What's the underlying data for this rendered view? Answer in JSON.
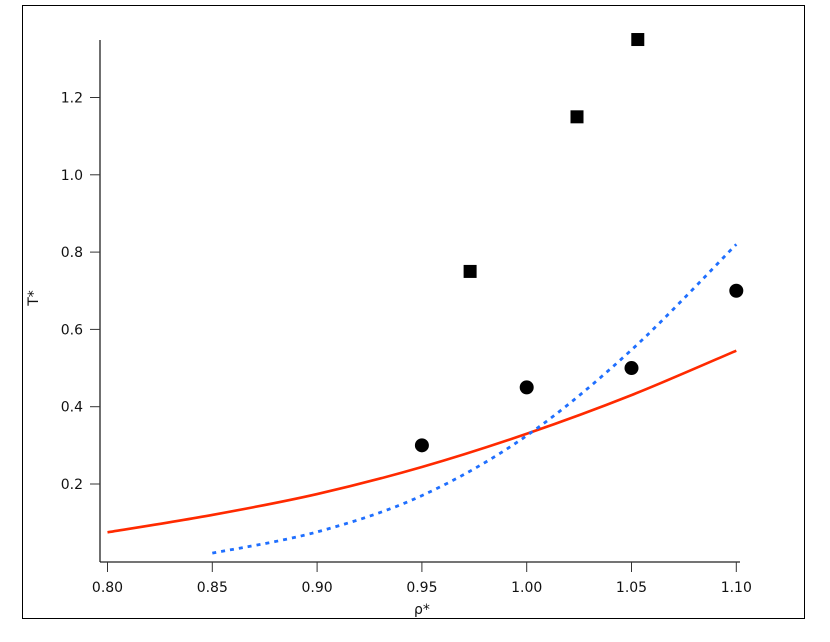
{
  "chart_data": {
    "type": "scatter",
    "title": "",
    "xlabel": "ρ*",
    "ylabel": "T*",
    "xlim": [
      0.797,
      1.1
    ],
    "ylim": [
      0.0,
      1.35
    ],
    "xticks": [
      0.8,
      0.85,
      0.9,
      0.95,
      1.0,
      1.05,
      1.1
    ],
    "xtick_labels": [
      "0.80",
      "0.85",
      "0.90",
      "0.95",
      "1.00",
      "1.05",
      "1.10"
    ],
    "yticks": [
      0.2,
      0.4,
      0.6,
      0.8,
      1.0,
      1.2
    ],
    "ytick_labels": [
      "0.2",
      "0.4",
      "0.6",
      "0.8",
      "1.0",
      "1.2"
    ],
    "grid": false,
    "series": [
      {
        "kind": "marker-square",
        "color": "#000000",
        "x": [
          0.973,
          1.024,
          1.053
        ],
        "y": [
          0.75,
          1.15,
          1.35
        ]
      },
      {
        "kind": "marker-circle",
        "color": "#000000",
        "x": [
          0.95,
          1.0,
          1.05,
          1.1
        ],
        "y": [
          0.3,
          0.45,
          0.5,
          0.7
        ]
      },
      {
        "kind": "line-solid",
        "color": "#ff2a00",
        "x": [
          0.8,
          0.85,
          0.9,
          0.95,
          1.0,
          1.05,
          1.1
        ],
        "y": [
          0.075,
          0.12,
          0.174,
          0.244,
          0.33,
          0.43,
          0.545
        ]
      },
      {
        "kind": "line-dotted",
        "color": "#1f6fff",
        "x": [
          0.85,
          0.9,
          0.95,
          1.0,
          1.05,
          1.1
        ],
        "y": [
          0.021,
          0.076,
          0.17,
          0.325,
          0.547,
          0.82
        ]
      }
    ]
  }
}
